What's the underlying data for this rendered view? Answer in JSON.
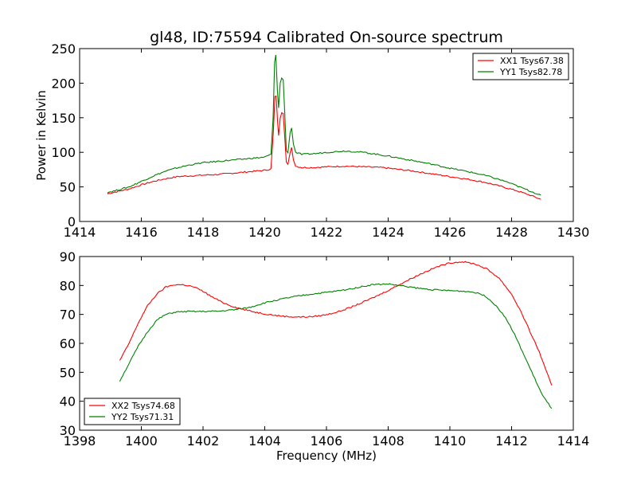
{
  "figure": {
    "title": "gl48, ID:75594 Calibrated On-source spectrum",
    "xlabel": "Frequency (MHz)",
    "ylabel": "Power in Kelvin"
  },
  "chart_data": [
    {
      "type": "line",
      "title": "gl48, ID:75594 Calibrated On-source spectrum",
      "xlabel": "",
      "ylabel": "Power in Kelvin",
      "xlim": [
        1414,
        1430
      ],
      "ylim": [
        0,
        250
      ],
      "xticks": [
        "1414",
        "1416",
        "1418",
        "1420",
        "1422",
        "1424",
        "1426",
        "1428",
        "1430"
      ],
      "yticks": [
        "0",
        "50",
        "100",
        "150",
        "200",
        "250"
      ],
      "grid": false,
      "legend": "top-right",
      "series": [
        {
          "name": "XX1 Tsys67.38",
          "color": "#ff0000",
          "points": [
            [
              1414.9,
              40
            ],
            [
              1415.2,
              43
            ],
            [
              1415.6,
              47
            ],
            [
              1416.0,
              53
            ],
            [
              1416.4,
              58
            ],
            [
              1416.8,
              62
            ],
            [
              1417.2,
              65
            ],
            [
              1417.6,
              66
            ],
            [
              1418.0,
              67
            ],
            [
              1418.5,
              68
            ],
            [
              1419.0,
              70
            ],
            [
              1419.5,
              72
            ],
            [
              1420.0,
              74
            ],
            [
              1420.2,
              76
            ],
            [
              1420.28,
              130
            ],
            [
              1420.33,
              180
            ],
            [
              1420.37,
              182
            ],
            [
              1420.42,
              140
            ],
            [
              1420.45,
              125
            ],
            [
              1420.5,
              150
            ],
            [
              1420.55,
              158
            ],
            [
              1420.6,
              157
            ],
            [
              1420.65,
              120
            ],
            [
              1420.7,
              85
            ],
            [
              1420.75,
              82
            ],
            [
              1420.82,
              100
            ],
            [
              1420.87,
              107
            ],
            [
              1420.93,
              90
            ],
            [
              1421.0,
              80
            ],
            [
              1421.2,
              78
            ],
            [
              1421.6,
              78
            ],
            [
              1422.0,
              79
            ],
            [
              1422.6,
              80
            ],
            [
              1423.2,
              79
            ],
            [
              1423.8,
              78
            ],
            [
              1424.2,
              76
            ],
            [
              1424.8,
              73
            ],
            [
              1425.4,
              69
            ],
            [
              1426.0,
              65
            ],
            [
              1426.6,
              61
            ],
            [
              1427.2,
              56
            ],
            [
              1427.8,
              49
            ],
            [
              1428.2,
              44
            ],
            [
              1428.6,
              38
            ],
            [
              1428.95,
              32
            ]
          ]
        },
        {
          "name": "YY1 Tsys82.78",
          "color": "#008000",
          "points": [
            [
              1414.9,
              42
            ],
            [
              1415.2,
              45
            ],
            [
              1415.6,
              50
            ],
            [
              1416.0,
              58
            ],
            [
              1416.4,
              66
            ],
            [
              1416.8,
              73
            ],
            [
              1417.2,
              78
            ],
            [
              1417.6,
              82
            ],
            [
              1418.0,
              85
            ],
            [
              1418.5,
              87
            ],
            [
              1419.0,
              89
            ],
            [
              1419.5,
              91
            ],
            [
              1420.0,
              93
            ],
            [
              1420.2,
              97
            ],
            [
              1420.27,
              150
            ],
            [
              1420.32,
              230
            ],
            [
              1420.36,
              240
            ],
            [
              1420.41,
              190
            ],
            [
              1420.45,
              165
            ],
            [
              1420.5,
              200
            ],
            [
              1420.55,
              207
            ],
            [
              1420.6,
              205
            ],
            [
              1420.65,
              155
            ],
            [
              1420.7,
              102
            ],
            [
              1420.75,
              100
            ],
            [
              1420.82,
              128
            ],
            [
              1420.87,
              136
            ],
            [
              1420.93,
              112
            ],
            [
              1421.0,
              100
            ],
            [
              1421.2,
              97
            ],
            [
              1421.6,
              98
            ],
            [
              1422.0,
              100
            ],
            [
              1422.6,
              102
            ],
            [
              1423.2,
              100
            ],
            [
              1423.8,
              96
            ],
            [
              1424.2,
              93
            ],
            [
              1424.8,
              88
            ],
            [
              1425.4,
              83
            ],
            [
              1426.0,
              77
            ],
            [
              1426.6,
              72
            ],
            [
              1427.2,
              66
            ],
            [
              1427.8,
              58
            ],
            [
              1428.2,
              51
            ],
            [
              1428.6,
              44
            ],
            [
              1428.95,
              38
            ]
          ]
        }
      ]
    },
    {
      "type": "line",
      "title": "",
      "xlabel": "Frequency (MHz)",
      "ylabel": "",
      "xlim": [
        1398,
        1414
      ],
      "ylim": [
        30,
        90
      ],
      "xticks": [
        "1398",
        "1400",
        "1402",
        "1404",
        "1406",
        "1408",
        "1410",
        "1412",
        "1414"
      ],
      "yticks": [
        "30",
        "40",
        "50",
        "60",
        "70",
        "80",
        "90"
      ],
      "grid": false,
      "legend": "bottom-left",
      "series": [
        {
          "name": "XX2 Tsys74.68",
          "color": "#ff0000",
          "points": [
            [
              1399.3,
              54
            ],
            [
              1399.6,
              60
            ],
            [
              1399.9,
              67
            ],
            [
              1400.2,
              73
            ],
            [
              1400.5,
              77
            ],
            [
              1400.8,
              79.5
            ],
            [
              1401.1,
              80.3
            ],
            [
              1401.4,
              80.2
            ],
            [
              1401.7,
              79.5
            ],
            [
              1402.0,
              78
            ],
            [
              1402.3,
              76
            ],
            [
              1402.6,
              74.3
            ],
            [
              1402.9,
              73
            ],
            [
              1403.2,
              72
            ],
            [
              1403.6,
              71
            ],
            [
              1404.0,
              70.2
            ],
            [
              1404.4,
              69.6
            ],
            [
              1404.8,
              69.2
            ],
            [
              1405.2,
              69.1
            ],
            [
              1405.6,
              69.3
            ],
            [
              1406.0,
              69.9
            ],
            [
              1406.4,
              71
            ],
            [
              1406.8,
              72.5
            ],
            [
              1407.2,
              74.3
            ],
            [
              1407.6,
              76.2
            ],
            [
              1408.0,
              78.3
            ],
            [
              1408.4,
              80.5
            ],
            [
              1408.8,
              82.7
            ],
            [
              1409.2,
              84.7
            ],
            [
              1409.6,
              86.5
            ],
            [
              1410.0,
              87.8
            ],
            [
              1410.4,
              88.2
            ],
            [
              1410.8,
              87.5
            ],
            [
              1411.2,
              85.7
            ],
            [
              1411.6,
              82.5
            ],
            [
              1412.0,
              77
            ],
            [
              1412.3,
              71
            ],
            [
              1412.6,
              64
            ],
            [
              1412.9,
              57
            ],
            [
              1413.1,
              51
            ],
            [
              1413.3,
              45.5
            ]
          ]
        },
        {
          "name": "YY2 Tsys71.31",
          "color": "#008000",
          "points": [
            [
              1399.3,
              47
            ],
            [
              1399.6,
              53
            ],
            [
              1399.9,
              59
            ],
            [
              1400.2,
              64
            ],
            [
              1400.5,
              68
            ],
            [
              1400.8,
              70
            ],
            [
              1401.1,
              70.8
            ],
            [
              1401.5,
              71
            ],
            [
              1402.0,
              71
            ],
            [
              1402.5,
              71.1
            ],
            [
              1403.0,
              71.6
            ],
            [
              1403.5,
              72.4
            ],
            [
              1404.0,
              74
            ],
            [
              1404.5,
              75.2
            ],
            [
              1405.0,
              76.2
            ],
            [
              1405.5,
              77
            ],
            [
              1406.0,
              77.6
            ],
            [
              1406.5,
              78.3
            ],
            [
              1407.0,
              79.3
            ],
            [
              1407.5,
              80.3
            ],
            [
              1408.0,
              80.5
            ],
            [
              1408.5,
              79.8
            ],
            [
              1409.0,
              79
            ],
            [
              1409.5,
              78.5
            ],
            [
              1410.0,
              78.2
            ],
            [
              1410.5,
              78
            ],
            [
              1410.9,
              77.5
            ],
            [
              1411.2,
              76
            ],
            [
              1411.5,
              73
            ],
            [
              1411.8,
              69
            ],
            [
              1412.1,
              63
            ],
            [
              1412.4,
              56
            ],
            [
              1412.7,
              49
            ],
            [
              1413.0,
              42
            ],
            [
              1413.3,
              37.5
            ]
          ]
        }
      ]
    }
  ]
}
